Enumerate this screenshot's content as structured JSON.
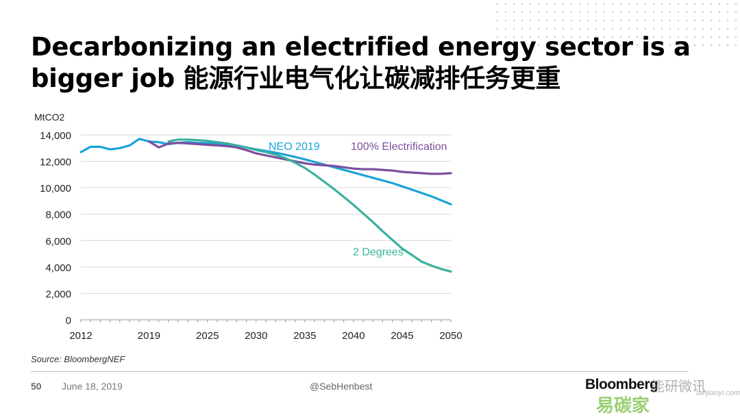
{
  "slide": {
    "title": "Decarbonizing an electrified energy sector is a bigger job 能源行业电气化让碳减排任务更重",
    "source": "Source: BloombergNEF",
    "page_number": "50",
    "date": "June 18, 2019",
    "handle": "@SebHenbest",
    "logo_text": "Bloomberg",
    "watermark_top": "能研微讯",
    "watermark_bottom": "易碳家",
    "watermark_url": "tanjiaoyi.com"
  },
  "chart_data": {
    "type": "line",
    "ylabel": "MtCO2",
    "xlabel": "",
    "xlim": [
      2012,
      2050
    ],
    "ylim": [
      0,
      14000
    ],
    "x_ticks": [
      2012,
      2019,
      2025,
      2030,
      2035,
      2040,
      2045,
      2050
    ],
    "x_tick_labels": [
      "2012",
      "2019",
      "2025",
      "2030",
      "2035",
      "2040",
      "2045",
      "2050"
    ],
    "y_ticks": [
      0,
      2000,
      4000,
      6000,
      8000,
      10000,
      12000,
      14000
    ],
    "y_tick_labels": [
      "0",
      "2,000",
      "4,000",
      "6,000",
      "8,000",
      "10,000",
      "12,000",
      "14,000"
    ],
    "grid": true,
    "legend": "inline labels",
    "series": [
      {
        "name": "NEO 2019",
        "color": "#1aa3d8",
        "x": [
          2012,
          2013,
          2014,
          2015,
          2016,
          2017,
          2018,
          2019,
          2020,
          2021,
          2022,
          2023,
          2024,
          2025,
          2026,
          2027,
          2028,
          2029,
          2030,
          2031,
          2032,
          2033,
          2034,
          2035,
          2036,
          2037,
          2038,
          2039,
          2040,
          2041,
          2042,
          2043,
          2044,
          2045,
          2046,
          2047,
          2048,
          2049,
          2050
        ],
        "values": [
          12700,
          13100,
          13100,
          12900,
          13000,
          13200,
          13700,
          13500,
          13450,
          13300,
          13400,
          13450,
          13400,
          13380,
          13350,
          13300,
          13200,
          13050,
          12900,
          12780,
          12650,
          12500,
          12330,
          12150,
          11950,
          11750,
          11550,
          11350,
          11150,
          10950,
          10750,
          10550,
          10350,
          10100,
          9850,
          9600,
          9350,
          9050,
          8750
        ]
      },
      {
        "name": "100% Electrification",
        "color": "#7b4f9e",
        "x": [
          2019,
          2020,
          2021,
          2022,
          2023,
          2024,
          2025,
          2026,
          2027,
          2028,
          2029,
          2030,
          2031,
          2032,
          2033,
          2034,
          2035,
          2036,
          2037,
          2038,
          2039,
          2040,
          2041,
          2042,
          2043,
          2044,
          2045,
          2046,
          2047,
          2048,
          2049,
          2050
        ],
        "values": [
          13500,
          13050,
          13350,
          13400,
          13350,
          13300,
          13250,
          13200,
          13150,
          13050,
          12850,
          12600,
          12450,
          12300,
          12150,
          12000,
          11850,
          11750,
          11700,
          11650,
          11550,
          11450,
          11400,
          11400,
          11350,
          11300,
          11200,
          11150,
          11100,
          11050,
          11050,
          11100
        ]
      },
      {
        "name": "2 Degrees",
        "color": "#3ab09e",
        "x": [
          2021,
          2022,
          2023,
          2024,
          2025,
          2026,
          2027,
          2028,
          2029,
          2030,
          2031,
          2032,
          2033,
          2034,
          2035,
          2036,
          2037,
          2038,
          2039,
          2040,
          2041,
          2042,
          2043,
          2044,
          2045,
          2046,
          2047,
          2048,
          2049,
          2050
        ],
        "values": [
          13500,
          13650,
          13650,
          13600,
          13550,
          13450,
          13350,
          13200,
          13050,
          12850,
          12700,
          12500,
          12250,
          11900,
          11500,
          11000,
          10450,
          9900,
          9300,
          8700,
          8050,
          7400,
          6700,
          6050,
          5400,
          4900,
          4400,
          4100,
          3850,
          3650
        ]
      }
    ],
    "annotations": [
      {
        "text": "NEO 2019",
        "series": "NEO 2019"
      },
      {
        "text": "100% Electrification",
        "series": "100% Electrification"
      },
      {
        "text": "2 Degrees",
        "series": "2 Degrees"
      }
    ]
  }
}
